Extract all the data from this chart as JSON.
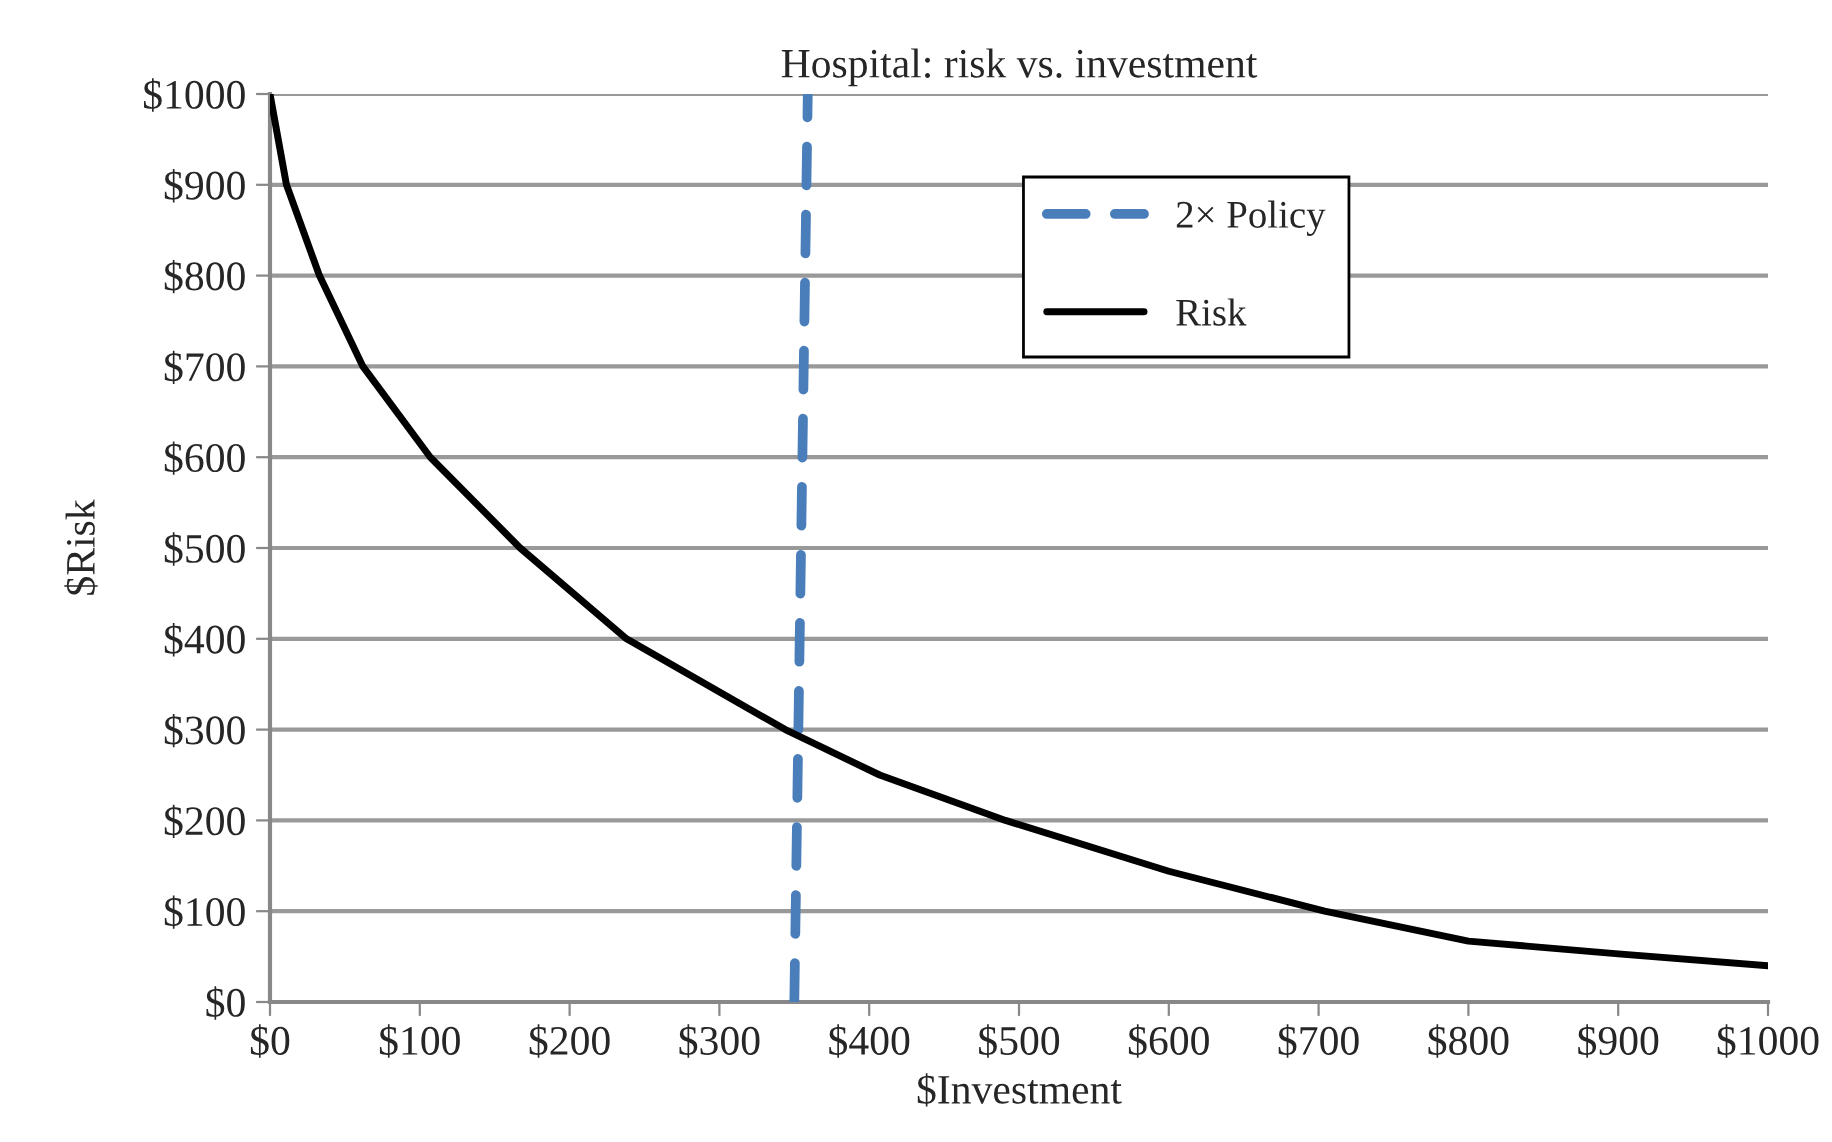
{
  "chart_data": {
    "type": "line",
    "title": "Hospital: risk vs. investment",
    "xlabel": "$Investment",
    "ylabel": "$Risk",
    "series": [
      {
        "name": "2× Policy",
        "color": "#4a7ebb",
        "line_style": "dashed",
        "x": [
          350,
          359
        ],
        "values": [
          0,
          1000
        ]
      },
      {
        "name": "Risk",
        "color": "#000000",
        "line_style": "solid",
        "x": [
          0,
          11,
          33,
          62,
          107,
          167,
          238,
          344,
          407,
          491,
          600,
          704,
          800,
          900,
          1000
        ],
        "values": [
          1000,
          900,
          800,
          700,
          600,
          500,
          400,
          300,
          250,
          200,
          144,
          100,
          67,
          53,
          40
        ]
      }
    ],
    "xlim": [
      0,
      1000
    ],
    "ylim": [
      0,
      1000
    ],
    "xticks": [
      {
        "value": 0,
        "label": "$0"
      },
      {
        "value": 100,
        "label": "$100"
      },
      {
        "value": 200,
        "label": "$200"
      },
      {
        "value": 300,
        "label": "$300"
      },
      {
        "value": 400,
        "label": "$400"
      },
      {
        "value": 500,
        "label": "$500"
      },
      {
        "value": 600,
        "label": "$600"
      },
      {
        "value": 700,
        "label": "$700"
      },
      {
        "value": 800,
        "label": "$800"
      },
      {
        "value": 900,
        "label": "$900"
      },
      {
        "value": 1000,
        "label": "$1000"
      }
    ],
    "yticks": [
      {
        "value": 0,
        "label": "$0"
      },
      {
        "value": 100,
        "label": "$100"
      },
      {
        "value": 200,
        "label": "$200"
      },
      {
        "value": 300,
        "label": "$300"
      },
      {
        "value": 400,
        "label": "$400"
      },
      {
        "value": 500,
        "label": "$500"
      },
      {
        "value": 600,
        "label": "$600"
      },
      {
        "value": 700,
        "label": "$700"
      },
      {
        "value": 800,
        "label": "$800"
      },
      {
        "value": 900,
        "label": "$900"
      },
      {
        "value": 1000,
        "label": "$1000"
      }
    ],
    "grid": "y",
    "legend": "top right",
    "marker": "none"
  }
}
